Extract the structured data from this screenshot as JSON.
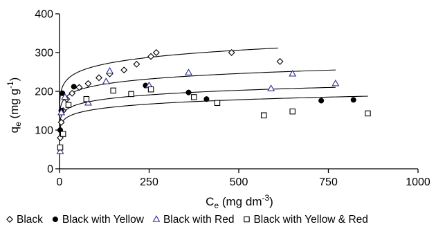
{
  "chart_data": {
    "type": "scatter",
    "xlabel_main": "C",
    "xlabel_sub": "e",
    "xlabel_unit": "(mg dm",
    "xlabel_sup": "-3",
    "xlabel_close": ")",
    "ylabel_main": "q",
    "ylabel_sub": "e",
    "ylabel_unit": "(mg g",
    "ylabel_sup": "-1",
    "ylabel_close": ")",
    "xlim": [
      0,
      1000
    ],
    "ylim": [
      0,
      400
    ],
    "xticks": [
      0,
      250,
      500,
      750,
      1000
    ],
    "yticks": [
      0,
      100,
      200,
      300,
      400
    ],
    "xtick_labels": [
      "0",
      "250",
      "500",
      "750",
      "1000"
    ],
    "ytick_labels": [
      "0",
      "100",
      "200",
      "300",
      "400"
    ],
    "grid": false,
    "legend_position": "bottom",
    "fit_curves": [
      {
        "x_max": 610,
        "a": 175,
        "b": 0.09
      },
      {
        "x_max": 770,
        "a": 145,
        "b": 0.085
      },
      {
        "x_max": 770,
        "a": 118,
        "b": 0.087
      },
      {
        "x_max": 860,
        "a": 100,
        "b": 0.093
      }
    ],
    "series": [
      {
        "name": "Black",
        "marker": "diamond-open",
        "color": "#000000",
        "points": [
          [
            2,
            80
          ],
          [
            5,
            120
          ],
          [
            10,
            150
          ],
          [
            20,
            180
          ],
          [
            35,
            195
          ],
          [
            55,
            210
          ],
          [
            80,
            220
          ],
          [
            110,
            235
          ],
          [
            140,
            245
          ],
          [
            180,
            255
          ],
          [
            215,
            270
          ],
          [
            255,
            290
          ],
          [
            270,
            300
          ],
          [
            480,
            300
          ],
          [
            615,
            277
          ]
        ]
      },
      {
        "name": "Black with Yellow",
        "marker": "circle-filled",
        "color": "#000000",
        "points": [
          [
            2,
            100
          ],
          [
            5,
            150
          ],
          [
            8,
            195
          ],
          [
            40,
            212
          ],
          [
            240,
            215
          ],
          [
            360,
            197
          ],
          [
            410,
            180
          ],
          [
            730,
            176
          ],
          [
            820,
            178
          ]
        ]
      },
      {
        "name": "Black with Red",
        "marker": "triangle-open",
        "color": "#2e3192",
        "points": [
          [
            2,
            45
          ],
          [
            5,
            145
          ],
          [
            15,
            185
          ],
          [
            80,
            170
          ],
          [
            130,
            225
          ],
          [
            140,
            252
          ],
          [
            250,
            215
          ],
          [
            360,
            248
          ],
          [
            590,
            207
          ],
          [
            650,
            245
          ],
          [
            770,
            220
          ]
        ]
      },
      {
        "name": "Black with Yellow & Red",
        "marker": "square-open",
        "color": "#000000",
        "points": [
          [
            2,
            55
          ],
          [
            10,
            90
          ],
          [
            25,
            165
          ],
          [
            75,
            180
          ],
          [
            150,
            202
          ],
          [
            200,
            193
          ],
          [
            255,
            205
          ],
          [
            375,
            185
          ],
          [
            440,
            170
          ],
          [
            570,
            138
          ],
          [
            650,
            148
          ],
          [
            860,
            143
          ]
        ]
      }
    ]
  }
}
